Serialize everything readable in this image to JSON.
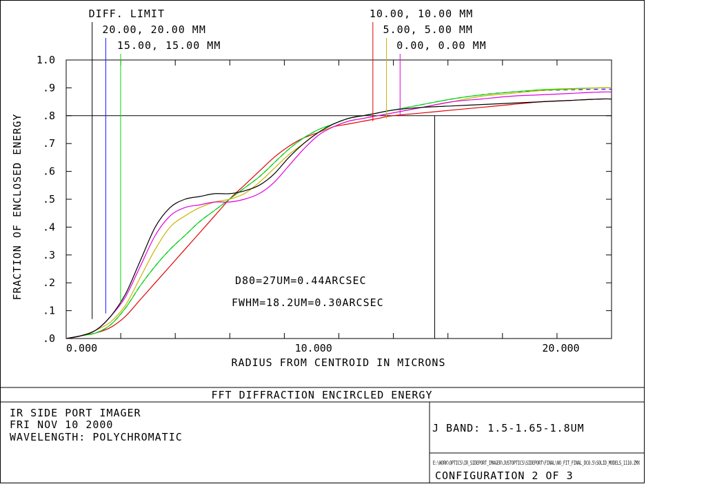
{
  "chart_data": {
    "type": "line",
    "title": "FFT DIFFRACTION ENCIRCLED ENERGY",
    "xlabel": "RADIUS FROM CENTROID IN MICRONS",
    "ylabel": "FRACTION OF ENCLOSED ENERGY",
    "xlim": [
      0,
      22.05
    ],
    "ylim": [
      0,
      1.0
    ],
    "x_tick_labels": [
      {
        "value": 0,
        "label": "0.000"
      },
      {
        "value": 10,
        "label": "10.000"
      },
      {
        "value": 20,
        "label": "20.000"
      }
    ],
    "y_tick_labels": [
      {
        "value": 1.0,
        "label": "1.0"
      },
      {
        "value": 0.9,
        "label": ".9"
      },
      {
        "value": 0.8,
        "label": ".8"
      },
      {
        "value": 0.7,
        "label": ".7"
      },
      {
        "value": 0.6,
        "label": ".6"
      },
      {
        "value": 0.5,
        "label": ".5"
      },
      {
        "value": 0.4,
        "label": ".4"
      },
      {
        "value": 0.3,
        "label": ".3"
      },
      {
        "value": 0.2,
        "label": ".2"
      },
      {
        "value": 0.1,
        "label": ".1"
      },
      {
        "value": 0.0,
        "label": ".0"
      }
    ],
    "x_minor_step": 2.205,
    "y_minor_step": 0.1,
    "reference_line_y": 0.8,
    "reference_line_x": 14.9,
    "annotations": [
      "D80=27UM=0.44ARCSEC",
      "FWHM=18.2UM=0.30ARCSEC"
    ],
    "series": [
      {
        "name": "DIFF. LIMIT",
        "color": "#000000",
        "x": [
          0,
          0.6,
          1.2,
          1.8,
          2.4,
          3.0,
          3.6,
          4.2,
          4.8,
          5.4,
          6.0,
          6.6,
          7.2,
          7.8,
          8.4,
          9.0,
          9.6,
          10.2,
          10.8,
          11.4,
          12.0,
          12.6,
          13.2,
          14.4,
          15.6,
          16.8,
          18.0,
          19.2,
          20.4,
          21.6,
          22.05
        ],
        "y": [
          0,
          0.01,
          0.03,
          0.08,
          0.16,
          0.28,
          0.4,
          0.47,
          0.5,
          0.51,
          0.52,
          0.52,
          0.53,
          0.55,
          0.59,
          0.65,
          0.7,
          0.74,
          0.77,
          0.79,
          0.8,
          0.81,
          0.82,
          0.83,
          0.835,
          0.84,
          0.845,
          0.85,
          0.855,
          0.86,
          0.86
        ]
      },
      {
        "name": "20.00, 20.00 MM",
        "color": "#1414ff",
        "x": [
          0,
          0.6,
          1.2,
          1.8,
          2.4,
          3.0,
          3.6,
          4.2,
          4.8,
          5.4,
          6.0,
          6.6,
          7.2,
          7.8,
          8.4,
          9.0,
          9.6,
          10.2,
          10.8,
          11.4,
          12.0,
          12.6,
          13.2,
          14.4,
          15.6,
          16.8,
          18.0,
          19.2,
          20.4,
          21.6,
          22.05
        ],
        "y": [
          0,
          0.01,
          0.02,
          0.05,
          0.11,
          0.19,
          0.26,
          0.32,
          0.37,
          0.42,
          0.46,
          0.5,
          0.54,
          0.58,
          0.63,
          0.68,
          0.72,
          0.75,
          0.77,
          0.79,
          0.8,
          0.81,
          0.82,
          0.84,
          0.86,
          0.875,
          0.885,
          0.89,
          0.893,
          0.895,
          0.895
        ]
      },
      {
        "name": "15.00, 15.00 MM",
        "color": "#00dc00",
        "x": [
          0,
          0.6,
          1.2,
          1.8,
          2.4,
          3.0,
          3.6,
          4.2,
          4.8,
          5.4,
          6.0,
          6.6,
          7.2,
          7.8,
          8.4,
          9.0,
          9.6,
          10.2,
          10.8,
          11.4,
          12.0,
          12.6,
          13.2,
          14.4,
          15.6,
          16.8,
          18.0,
          19.2,
          20.4,
          21.6,
          22.05
        ],
        "y": [
          0,
          0.01,
          0.02,
          0.05,
          0.11,
          0.19,
          0.26,
          0.32,
          0.37,
          0.42,
          0.46,
          0.5,
          0.54,
          0.58,
          0.63,
          0.68,
          0.72,
          0.75,
          0.77,
          0.79,
          0.8,
          0.81,
          0.82,
          0.84,
          0.86,
          0.875,
          0.885,
          0.893,
          0.897,
          0.9,
          0.9
        ]
      },
      {
        "name": "10.00, 10.00 MM",
        "color": "#e00000",
        "x": [
          0,
          0.6,
          1.2,
          1.8,
          2.4,
          3.0,
          3.6,
          4.2,
          4.8,
          5.4,
          6.0,
          6.6,
          7.2,
          7.8,
          8.4,
          9.0,
          9.6,
          10.2,
          10.8,
          11.4,
          12.0,
          12.6,
          13.2,
          14.4,
          15.6,
          16.8,
          18.0,
          19.2,
          20.4,
          21.6,
          22.05
        ],
        "y": [
          0,
          0.01,
          0.02,
          0.04,
          0.08,
          0.14,
          0.2,
          0.26,
          0.32,
          0.38,
          0.44,
          0.5,
          0.55,
          0.6,
          0.65,
          0.69,
          0.72,
          0.74,
          0.76,
          0.77,
          0.78,
          0.79,
          0.8,
          0.81,
          0.82,
          0.83,
          0.84,
          0.85,
          0.855,
          0.86,
          0.86
        ]
      },
      {
        "name": "5.00, 5.00 MM",
        "color": "#c8b400",
        "x": [
          0,
          0.6,
          1.2,
          1.8,
          2.4,
          3.0,
          3.6,
          4.2,
          4.8,
          5.4,
          6.0,
          6.6,
          7.2,
          7.8,
          8.4,
          9.0,
          9.6,
          10.2,
          10.8,
          11.4,
          12.0,
          12.6,
          13.2,
          14.4,
          15.6,
          16.8,
          18.0,
          19.2,
          20.4,
          21.6,
          22.05
        ],
        "y": [
          0,
          0.01,
          0.03,
          0.06,
          0.12,
          0.22,
          0.32,
          0.4,
          0.44,
          0.47,
          0.49,
          0.5,
          0.52,
          0.56,
          0.61,
          0.66,
          0.7,
          0.74,
          0.76,
          0.78,
          0.79,
          0.8,
          0.81,
          0.83,
          0.85,
          0.87,
          0.88,
          0.89,
          0.895,
          0.9,
          0.9
        ]
      },
      {
        "name": "0.00, 0.00 MM",
        "color": "#e000e0",
        "x": [
          0,
          0.6,
          1.2,
          1.8,
          2.4,
          3.0,
          3.6,
          4.2,
          4.8,
          5.4,
          6.0,
          6.6,
          7.2,
          7.8,
          8.4,
          9.0,
          9.6,
          10.2,
          10.8,
          11.4,
          12.0,
          12.6,
          13.2,
          14.4,
          15.6,
          16.8,
          18.0,
          19.2,
          20.4,
          21.6,
          22.05
        ],
        "y": [
          0,
          0.01,
          0.03,
          0.08,
          0.15,
          0.26,
          0.37,
          0.44,
          0.47,
          0.48,
          0.49,
          0.49,
          0.5,
          0.52,
          0.56,
          0.62,
          0.68,
          0.73,
          0.76,
          0.78,
          0.79,
          0.8,
          0.81,
          0.83,
          0.85,
          0.86,
          0.87,
          0.875,
          0.88,
          0.885,
          0.885
        ]
      }
    ],
    "markers": [
      {
        "label": "DIFF. LIMIT",
        "x": 1.05,
        "color": "#000000",
        "y_top": 0.07
      },
      {
        "label": "20.00, 20.00 MM",
        "x": 1.6,
        "color": "#1414ff",
        "y_top": 0.09
      },
      {
        "label": "15.00, 15.00 MM",
        "x": 2.2,
        "color": "#00dc00",
        "y_top": 0.13
      },
      {
        "label": "10.00, 10.00 MM",
        "x": 12.4,
        "color": "#e00000",
        "y_top": 0.78
      },
      {
        "label": "5.00, 5.00 MM",
        "x": 12.95,
        "color": "#c8b400",
        "y_top": 0.79
      },
      {
        "label": "0.00, 0.00 MM",
        "x": 13.5,
        "color": "#e000e0",
        "y_top": 0.8
      }
    ]
  },
  "footer": {
    "title": "FFT DIFFRACTION ENCIRCLED ENERGY",
    "line1": "IR SIDE PORT IMAGER",
    "line2": "FRI NOV 10 2000",
    "line3": "WAVELENGTH: POLYCHROMATIC",
    "band": "J BAND: 1.5-1.65-1.8UM",
    "filepath": "E:\\WORK\\OPTICS\\IR_SIDEPORT_IMAGER\\JUSTOPTICS\\SIDEPORT\\FINAL\\NO_FIT_FINAL_DC0.5\\SOLID_MODELS_1110.ZMX",
    "configuration": "CONFIGURATION  2 OF 3"
  }
}
